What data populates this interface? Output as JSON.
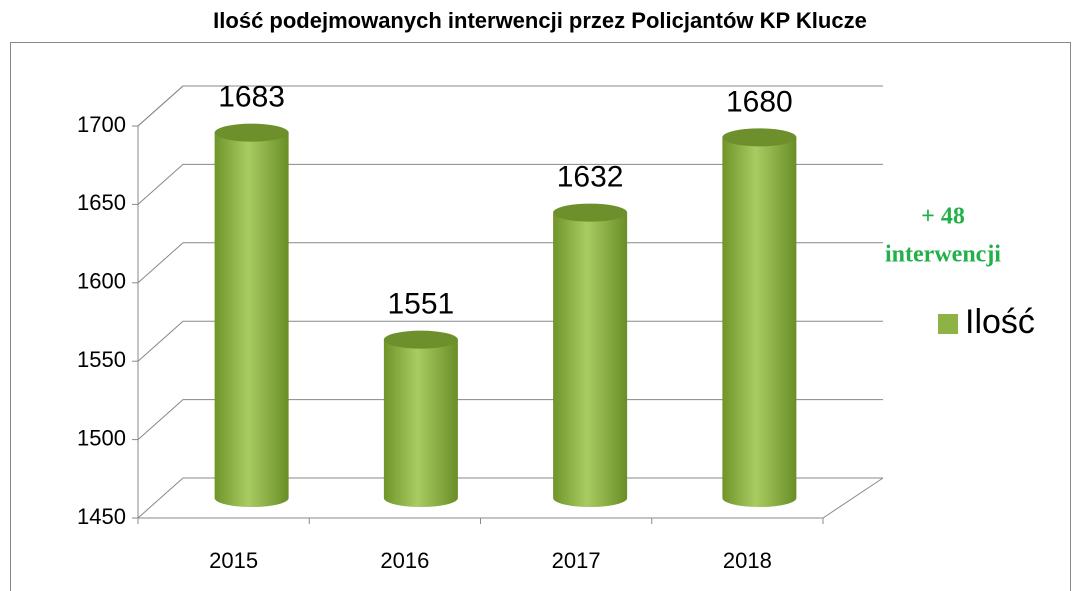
{
  "chart_data": {
    "type": "bar",
    "title": "Ilość podejmowanych interwencji przez Policjantów KP Klucze",
    "categories": [
      "2015",
      "2016",
      "2017",
      "2018"
    ],
    "series": [
      {
        "name": "Ilość",
        "color": "#8db347",
        "values": [
          1683,
          1551,
          1632,
          1680
        ]
      }
    ],
    "ylim": [
      1450,
      1700
    ],
    "yticks": [
      1450,
      1500,
      1550,
      1600,
      1650,
      1700
    ],
    "grid": true,
    "legend": "right",
    "annotation": [
      "+ 48",
      "interwencji"
    ]
  }
}
